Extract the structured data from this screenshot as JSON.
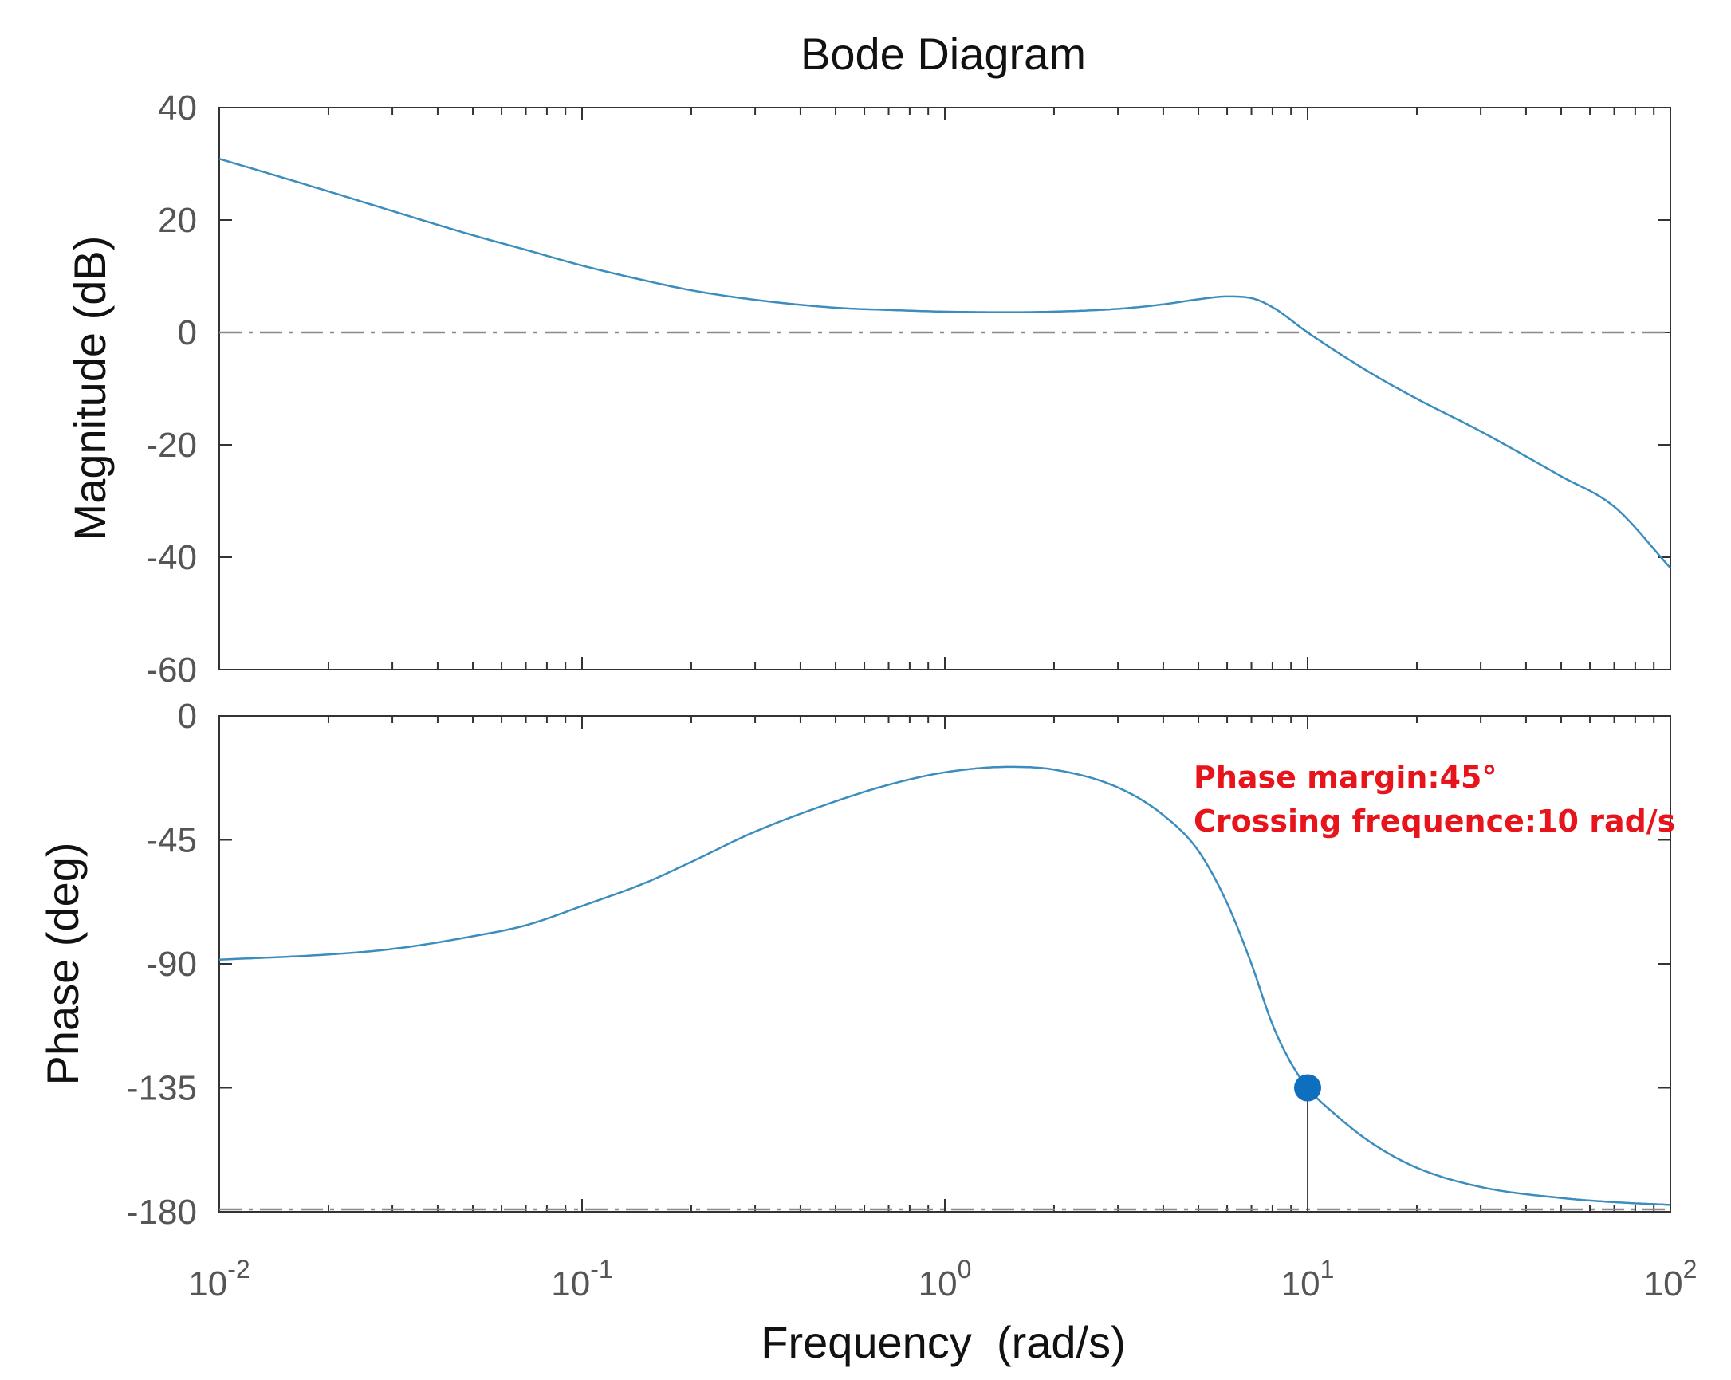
{
  "chart_data": [
    {
      "type": "line",
      "title": "Bode Diagram",
      "xlabel": "",
      "ylabel": "Magnitude (dB)",
      "xscale": "log",
      "xlim": [
        0.01,
        100
      ],
      "ylim": [
        -60,
        40
      ],
      "yticks": [
        40,
        20,
        0,
        -20,
        -40,
        -60
      ],
      "tick_labels_y": [
        "40",
        "20",
        "0",
        "-20",
        "-40",
        "-60"
      ],
      "reference_line": {
        "y": 0,
        "style": "dash-dot",
        "color": "#8a8a8a"
      },
      "series": [
        {
          "color": "#3b8dbd",
          "x": [
            0.01,
            0.02,
            0.03,
            0.05,
            0.07,
            0.1,
            0.15,
            0.2,
            0.3,
            0.5,
            0.7,
            1,
            1.5,
            2,
            3,
            4,
            5,
            6,
            7,
            8,
            10,
            15,
            20,
            30,
            50,
            70,
            100
          ],
          "y": [
            30.9,
            25.1,
            21.6,
            17.3,
            14.7,
            11.9,
            9.2,
            7.5,
            5.8,
            4.4,
            4.0,
            3.7,
            3.6,
            3.7,
            4.2,
            5.0,
            5.9,
            6.4,
            6.1,
            4.5,
            0.0,
            -7.3,
            -11.8,
            -17.6,
            -25.6,
            -31.0,
            -41.9
          ]
        }
      ]
    },
    {
      "type": "line",
      "xlabel": "Frequency  (rad/s)",
      "ylabel": "Phase (deg)",
      "xscale": "log",
      "xlim": [
        0.01,
        100
      ],
      "ylim": [
        -180,
        0
      ],
      "yticks": [
        0,
        -45,
        -90,
        -135,
        -180
      ],
      "tick_labels_y": [
        "0",
        "-45",
        "-90",
        "-135",
        "-180"
      ],
      "xticks": [
        0.01,
        0.1,
        1,
        10,
        100
      ],
      "tick_labels_x": [
        {
          "base": "10",
          "exp": "-2"
        },
        {
          "base": "10",
          "exp": "-1"
        },
        {
          "base": "10",
          "exp": "0"
        },
        {
          "base": "10",
          "exp": "1"
        },
        {
          "base": "10",
          "exp": "2"
        }
      ],
      "reference_line": {
        "y": -180,
        "style": "dash-dot",
        "color": "#8a8a8a"
      },
      "series": [
        {
          "color": "#3b8dbd",
          "x": [
            0.01,
            0.02,
            0.03,
            0.05,
            0.07,
            0.1,
            0.15,
            0.2,
            0.3,
            0.5,
            0.7,
            1,
            1.5,
            2,
            3,
            4,
            5,
            6,
            7,
            8,
            9,
            10,
            12,
            15,
            20,
            30,
            50,
            70,
            100
          ],
          "y": [
            -88.5,
            -86.6,
            -84.6,
            -80,
            -76,
            -69,
            -60.5,
            -53,
            -42,
            -31,
            -25,
            -20.5,
            -18.5,
            -19.5,
            -26,
            -36,
            -49,
            -68,
            -90,
            -112,
            -126,
            -135,
            -145,
            -155,
            -164,
            -171,
            -175,
            -176.5,
            -177.5
          ]
        }
      ],
      "marker": {
        "x": 10,
        "y": -135,
        "color": "#0d6fbd"
      },
      "annotations": [
        "Phase margin:45°",
        "Crossing frequence:10 rad/s"
      ]
    }
  ]
}
